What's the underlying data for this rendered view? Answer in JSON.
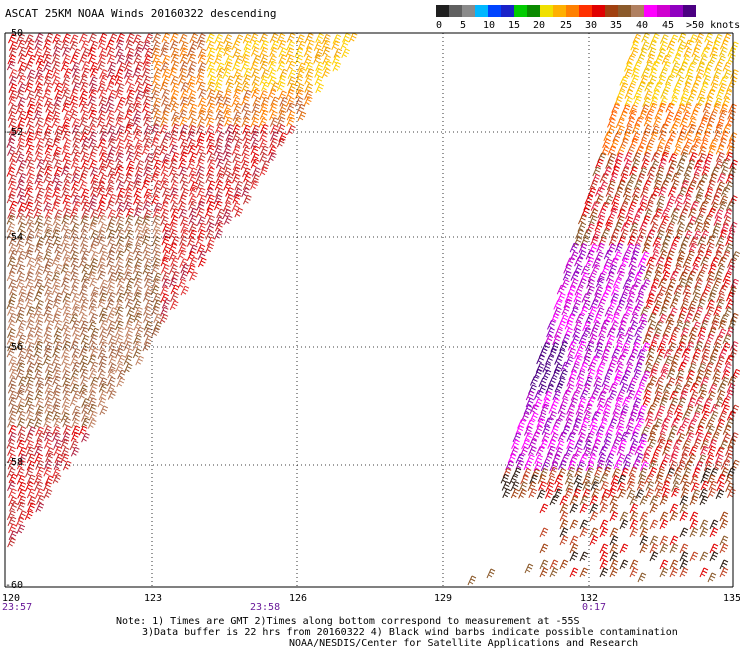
{
  "title": "ASCAT 25KM NOAA Winds 20160322 descending",
  "colorbar": {
    "colors": [
      "#202020",
      "#606060",
      "#8a8a8a",
      "#00b7ff",
      "#0044ff",
      "#1a22c8",
      "#00cc00",
      "#0a8a00",
      "#f0e000",
      "#ffb000",
      "#ff8000",
      "#ff3000",
      "#e00000",
      "#a04010",
      "#8b5a2b",
      "#b08060",
      "#ff00ff",
      "#d000d0",
      "#9000c0",
      "#4b0082"
    ],
    "labels": [
      "0",
      "5",
      "10",
      "15",
      "20",
      "25",
      "30",
      "35",
      "40",
      "45",
      ">50 knots"
    ]
  },
  "map": {
    "lat_labels": [
      "-50",
      "-52",
      "-54",
      "-56",
      "-58",
      "-60"
    ],
    "lon_labels": [
      "120",
      "123",
      "126",
      "129",
      "132",
      "135"
    ],
    "time_labels": [
      "23:57",
      "23:58",
      "0:17"
    ]
  },
  "notes": {
    "line1": "Note: 1) Times are GMT 2)Times along bottom correspond to measurement at -55S",
    "line2": "3)Data buffer is 22 hrs from 20160322 4) Black wind barbs indicate possible contamination",
    "line3": "NOAA/NESDIS/Center for Satellite Applications and Research"
  }
}
